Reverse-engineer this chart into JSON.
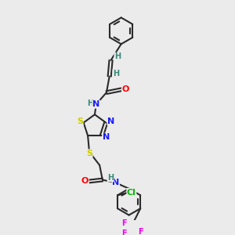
{
  "bg": "#ebebeb",
  "bond_color": "#2a2a2a",
  "colors": {
    "C": "#2a2a2a",
    "H": "#3a8878",
    "N": "#1a1aff",
    "O": "#ff0000",
    "S": "#cccc00",
    "F": "#ee00ee",
    "Cl": "#00bb00"
  },
  "lw": 1.5,
  "fs": 8.0,
  "fsh": 7.0
}
